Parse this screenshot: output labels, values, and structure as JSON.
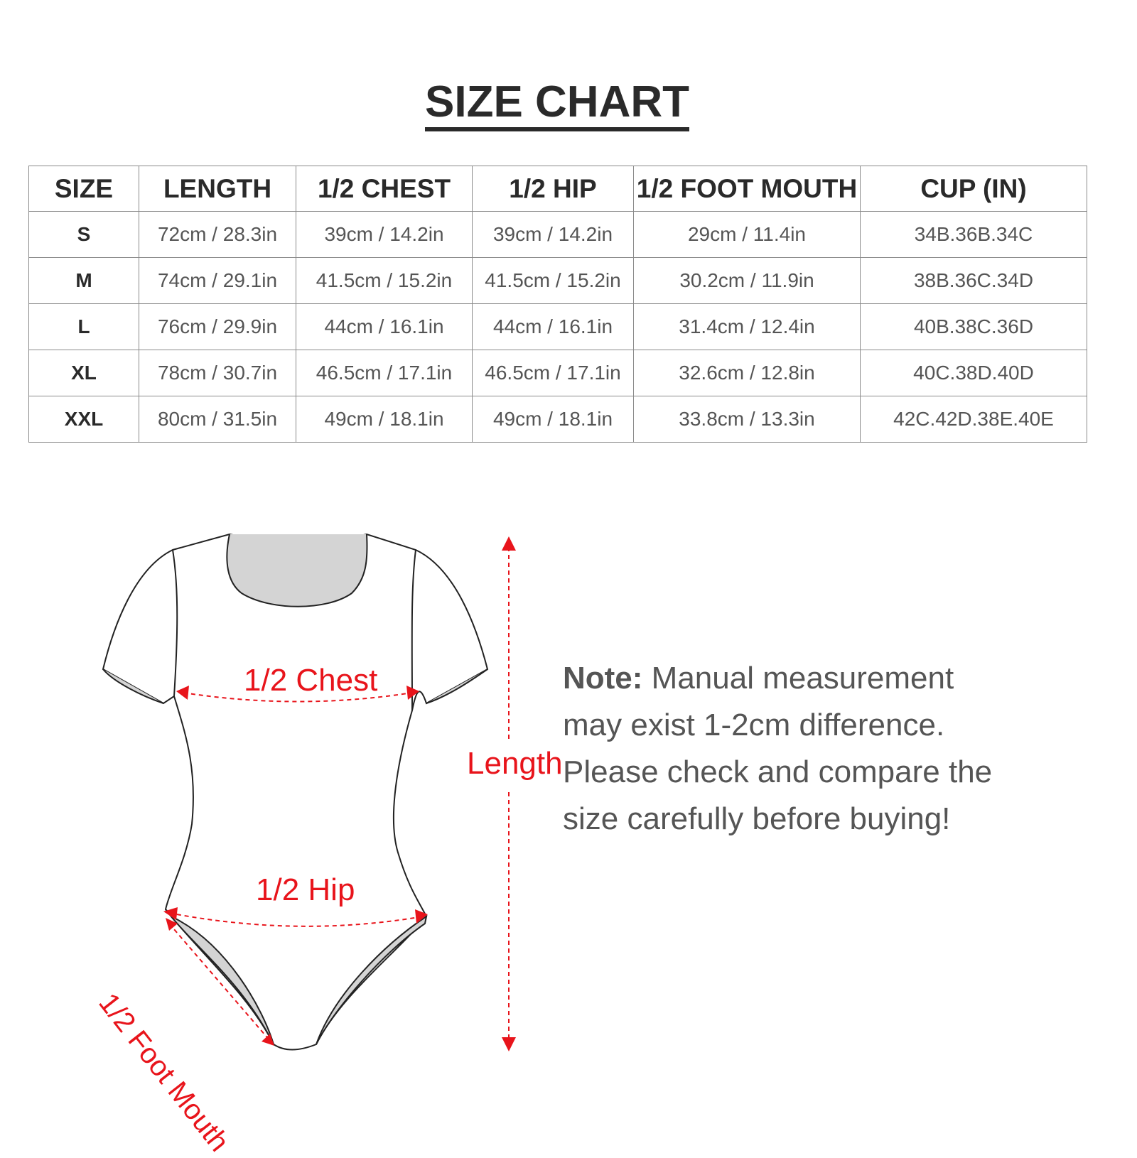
{
  "title": "SIZE CHART",
  "table": {
    "headers": [
      "SIZE",
      "LENGTH",
      "1/2 CHEST",
      "1/2 HIP",
      "1/2 FOOT MOUTH",
      "CUP (IN)"
    ],
    "rows": [
      [
        "S",
        "72cm / 28.3in",
        "39cm / 14.2in",
        "39cm / 14.2in",
        "29cm / 11.4in",
        "34B.36B.34C"
      ],
      [
        "M",
        "74cm / 29.1in",
        "41.5cm / 15.2in",
        "41.5cm / 15.2in",
        "30.2cm / 11.9in",
        "38B.36C.34D"
      ],
      [
        "L",
        "76cm / 29.9in",
        "44cm / 16.1in",
        "44cm / 16.1in",
        "31.4cm / 12.4in",
        "40B.38C.36D"
      ],
      [
        "XL",
        "78cm / 30.7in",
        "46.5cm / 17.1in",
        "46.5cm / 17.1in",
        "32.6cm / 12.8in",
        "40C.38D.40D"
      ],
      [
        "XXL",
        "80cm / 31.5in",
        "49cm / 18.1in",
        "49cm / 18.1in",
        "33.8cm / 13.3in",
        "42C.42D.38E.40E"
      ]
    ]
  },
  "diagram": {
    "chest_label": "1/2 Chest",
    "hip_label": "1/2 Hip",
    "foot_mouth_label": "1/2 Foot Mouth",
    "length_label": "Length",
    "accent_color": "#e8141b"
  },
  "note": {
    "label": "Note:",
    "text": " Manual measurement may exist 1-2cm difference. Please check and compare the size carefully before buying!"
  }
}
